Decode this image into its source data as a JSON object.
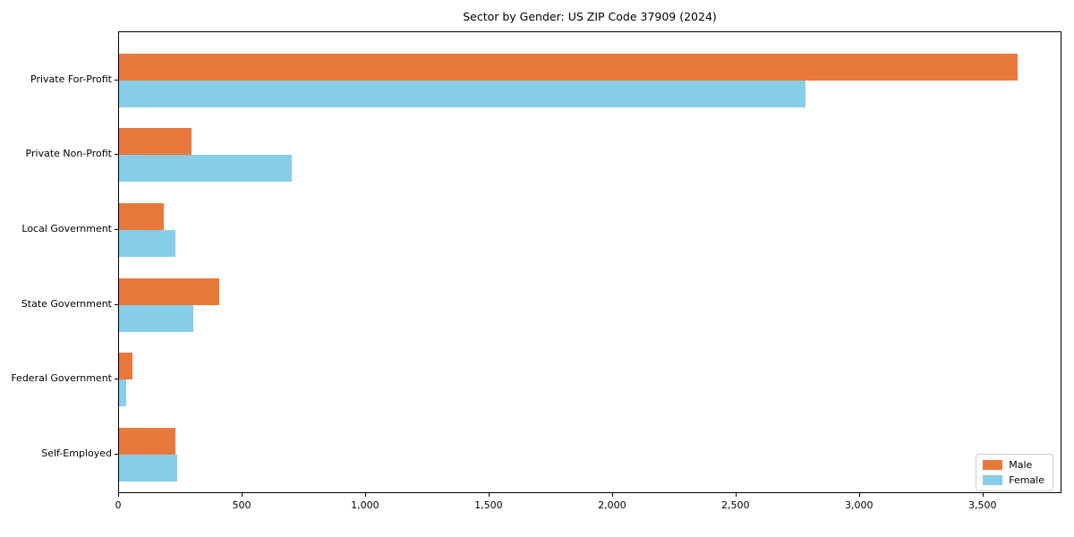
{
  "title": "Sector by Gender: US ZIP Code 37909 (2024)",
  "chart_data": {
    "type": "bar",
    "orientation": "horizontal",
    "title": "Sector by Gender: US ZIP Code 37909 (2024)",
    "categories": [
      "Private For-Profit",
      "Private Non-Profit",
      "Local Government",
      "State Government",
      "Federal Government",
      "Self-Employed"
    ],
    "series": [
      {
        "name": "Male",
        "color": "#e8793d",
        "values": [
          3640,
          295,
          180,
          405,
          55,
          230
        ]
      },
      {
        "name": "Female",
        "color": "#87ceeb",
        "values": [
          2780,
          700,
          230,
          300,
          30,
          235
        ]
      }
    ],
    "xlabel": "",
    "ylabel": "",
    "xlim": [
      0,
      3820
    ],
    "xticks": [
      0,
      500,
      1000,
      1500,
      2000,
      2500,
      3000,
      3500
    ],
    "xtick_labels": [
      "0",
      "500",
      "1,000",
      "1,500",
      "2,000",
      "2,500",
      "3,000",
      "3,500"
    ],
    "grid": false,
    "legend_position": "lower right",
    "plot_border_color": "#000000",
    "background_color": "#ffffff"
  }
}
